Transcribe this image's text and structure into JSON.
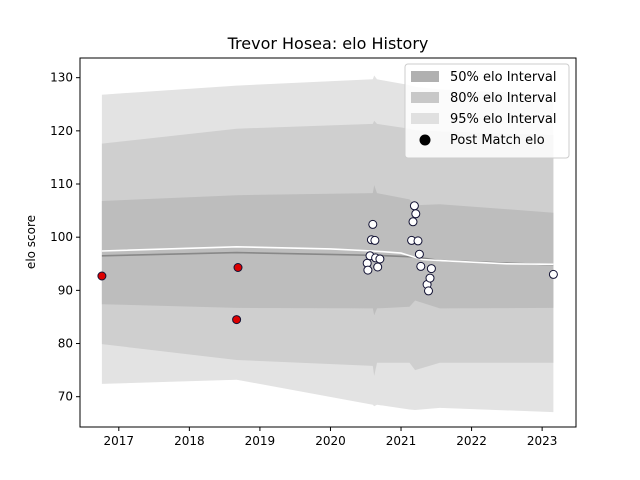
{
  "chart_data": {
    "type": "scatter",
    "title": "Trevor Hosea: elo History",
    "xlabel": "",
    "ylabel": "elo score",
    "xlim": [
      2016.45,
      2023.48
    ],
    "ylim": [
      64.3,
      133.7
    ],
    "xticks": [
      2017,
      2018,
      2019,
      2020,
      2021,
      2022,
      2023
    ],
    "yticks": [
      70,
      80,
      90,
      100,
      110,
      120,
      130
    ],
    "grid": false,
    "legend_position": "top-right",
    "colors": {
      "band95": "#e3e3e3",
      "band80": "#cfcfcf",
      "band50": "#bdbdbd",
      "mean_line": "#888888",
      "smooth_line": "#ffffff",
      "point_fill": "#ffffff",
      "highlight_fill": "#dd0000",
      "point_edge": "#111133"
    },
    "legend": [
      {
        "label": "50% elo Interval",
        "kind": "patch",
        "color": "#b0b0b0"
      },
      {
        "label": "80% elo Interval",
        "kind": "patch",
        "color": "#c8c8c8"
      },
      {
        "label": "95% elo Interval",
        "kind": "patch",
        "color": "#e0e0e0"
      },
      {
        "label": "Post Match elo",
        "kind": "marker",
        "color": "#000000"
      }
    ],
    "bands": {
      "x": [
        2016.76,
        2018.67,
        2020.6,
        2020.62,
        2020.66,
        2021.12,
        2021.2,
        2021.55,
        2023.16
      ],
      "p95_upper": [
        126.8,
        128.5,
        129.7,
        130.4,
        129.7,
        128.6,
        128.3,
        127.8,
        126.8
      ],
      "p80_upper": [
        117.6,
        120.4,
        121.3,
        121.9,
        121.3,
        120.4,
        120.1,
        119.9,
        119.2
      ],
      "p50_upper": [
        106.8,
        107.9,
        108.3,
        109.8,
        108.3,
        107.1,
        106.0,
        106.2,
        104.6
      ],
      "p50_lower": [
        87.4,
        86.7,
        86.6,
        85.3,
        86.6,
        86.9,
        88.1,
        86.6,
        86.7
      ],
      "p80_lower": [
        79.9,
        76.9,
        75.8,
        73.9,
        76.4,
        76.4,
        75.0,
        76.4,
        76.4
      ],
      "p95_lower": [
        72.4,
        73.2,
        68.5,
        68.2,
        68.5,
        67.6,
        67.5,
        67.9,
        67.1
      ]
    },
    "mean_line": {
      "x": [
        2016.76,
        2018.67,
        2020.6,
        2021.2,
        2021.55,
        2023.16
      ],
      "y": [
        96.5,
        97.1,
        96.6,
        96.3,
        95.6,
        94.8
      ]
    },
    "smooth_line": {
      "x": [
        2016.76,
        2018.67,
        2020.0,
        2020.6,
        2021.0,
        2021.3,
        2021.55,
        2022.5,
        2023.16
      ],
      "y": [
        97.4,
        98.2,
        97.8,
        97.4,
        97.0,
        95.8,
        95.6,
        95.0,
        94.9
      ]
    },
    "points": [
      {
        "x": 2016.76,
        "y": 92.7,
        "highlight": true
      },
      {
        "x": 2018.67,
        "y": 84.5,
        "highlight": true
      },
      {
        "x": 2018.69,
        "y": 94.3,
        "highlight": true
      },
      {
        "x": 2020.52,
        "y": 95.1
      },
      {
        "x": 2020.53,
        "y": 93.8
      },
      {
        "x": 2020.56,
        "y": 96.5
      },
      {
        "x": 2020.58,
        "y": 99.5
      },
      {
        "x": 2020.6,
        "y": 102.4
      },
      {
        "x": 2020.63,
        "y": 99.4
      },
      {
        "x": 2020.64,
        "y": 96.1
      },
      {
        "x": 2020.67,
        "y": 94.4
      },
      {
        "x": 2020.7,
        "y": 95.9
      },
      {
        "x": 2021.15,
        "y": 99.4
      },
      {
        "x": 2021.17,
        "y": 102.9
      },
      {
        "x": 2021.19,
        "y": 105.9
      },
      {
        "x": 2021.21,
        "y": 104.4
      },
      {
        "x": 2021.24,
        "y": 99.3
      },
      {
        "x": 2021.26,
        "y": 96.8
      },
      {
        "x": 2021.28,
        "y": 94.5
      },
      {
        "x": 2021.37,
        "y": 91.1
      },
      {
        "x": 2021.39,
        "y": 89.9
      },
      {
        "x": 2021.41,
        "y": 92.3
      },
      {
        "x": 2021.43,
        "y": 94.1
      },
      {
        "x": 2023.16,
        "y": 93.0
      }
    ]
  }
}
